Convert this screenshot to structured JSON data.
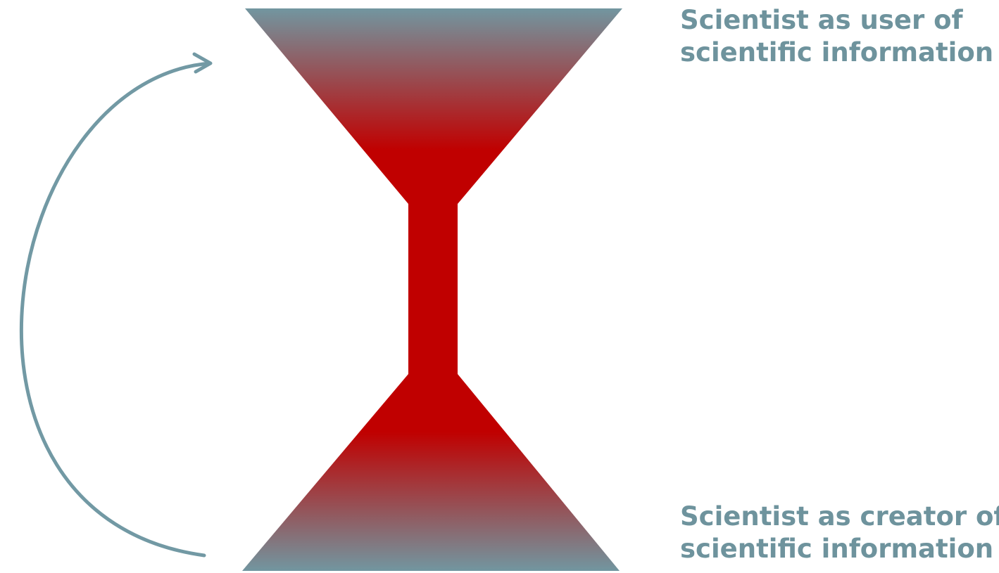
{
  "labels": {
    "top": {
      "line1": "Scientist as user of",
      "line2": "scientific information"
    },
    "bottom": {
      "line1": "Scientist as creator of",
      "line2": "scientific information"
    }
  },
  "colors": {
    "accent_red": "#c00000",
    "slate": "#7296a0",
    "text": "#6e939d",
    "arrow": "#7299a4",
    "background": "#ffffff"
  }
}
